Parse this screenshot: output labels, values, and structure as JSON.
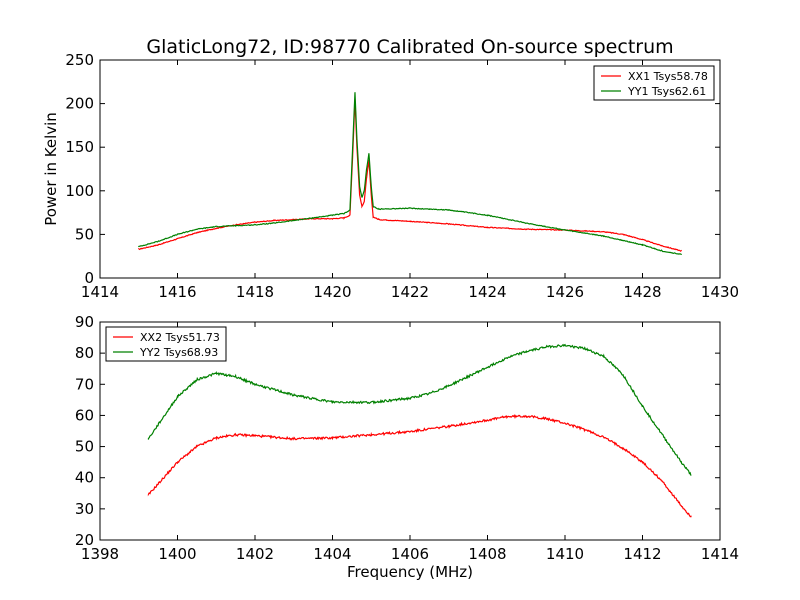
{
  "figure": {
    "title": "GlaticLong72, ID:98770 Calibrated On-source spectrum",
    "xlabel": "Frequency (MHz)",
    "ylabel": "Power in Kelvin"
  },
  "colors": {
    "red": "#ff0000",
    "green": "#008000"
  },
  "chart_data": [
    {
      "type": "line",
      "title": "GlaticLong72, ID:98770 Calibrated On-source spectrum",
      "xlabel": "",
      "ylabel": "Power in Kelvin",
      "xlim": [
        1414,
        1430
      ],
      "ylim": [
        0,
        250
      ],
      "xticks": [
        1414,
        1416,
        1418,
        1420,
        1422,
        1424,
        1426,
        1428,
        1430
      ],
      "yticks": [
        0,
        50,
        100,
        150,
        200,
        250
      ],
      "legend_position": "top-right",
      "grid": false,
      "series": [
        {
          "name": "XX1 Tsys58.78",
          "color": "#ff0000",
          "points": [
            [
              1415.0,
              33
            ],
            [
              1415.5,
              38
            ],
            [
              1416.0,
              45
            ],
            [
              1416.5,
              52
            ],
            [
              1417.0,
              57
            ],
            [
              1417.5,
              61
            ],
            [
              1418.0,
              64
            ],
            [
              1418.5,
              66
            ],
            [
              1419.0,
              67
            ],
            [
              1419.5,
              68
            ],
            [
              1420.0,
              68
            ],
            [
              1420.3,
              69
            ],
            [
              1420.45,
              72
            ],
            [
              1420.52,
              140
            ],
            [
              1420.58,
              205
            ],
            [
              1420.63,
              150
            ],
            [
              1420.7,
              95
            ],
            [
              1420.76,
              82
            ],
            [
              1420.82,
              88
            ],
            [
              1420.88,
              115
            ],
            [
              1420.94,
              135
            ],
            [
              1421.0,
              95
            ],
            [
              1421.05,
              70
            ],
            [
              1421.2,
              67
            ],
            [
              1422.0,
              65
            ],
            [
              1423.0,
              62
            ],
            [
              1424.0,
              58
            ],
            [
              1425.0,
              56
            ],
            [
              1426.0,
              55
            ],
            [
              1427.0,
              53
            ],
            [
              1427.5,
              50
            ],
            [
              1428.0,
              44
            ],
            [
              1428.5,
              37
            ],
            [
              1429.0,
              31
            ]
          ]
        },
        {
          "name": "YY1 Tsys62.61",
          "color": "#008000",
          "points": [
            [
              1415.0,
              36
            ],
            [
              1415.5,
              42
            ],
            [
              1416.0,
              50
            ],
            [
              1416.5,
              56
            ],
            [
              1417.0,
              59
            ],
            [
              1417.5,
              60
            ],
            [
              1418.0,
              61
            ],
            [
              1418.5,
              63
            ],
            [
              1419.0,
              66
            ],
            [
              1419.5,
              69
            ],
            [
              1420.0,
              72
            ],
            [
              1420.3,
              74
            ],
            [
              1420.45,
              78
            ],
            [
              1420.52,
              150
            ],
            [
              1420.58,
              213
            ],
            [
              1420.63,
              160
            ],
            [
              1420.7,
              105
            ],
            [
              1420.76,
              92
            ],
            [
              1420.82,
              100
            ],
            [
              1420.88,
              125
            ],
            [
              1420.94,
              143
            ],
            [
              1421.0,
              105
            ],
            [
              1421.05,
              82
            ],
            [
              1421.2,
              79
            ],
            [
              1422.0,
              80
            ],
            [
              1422.5,
              79
            ],
            [
              1423.0,
              78
            ],
            [
              1424.0,
              72
            ],
            [
              1425.0,
              63
            ],
            [
              1426.0,
              55
            ],
            [
              1427.0,
              48
            ],
            [
              1428.0,
              38
            ],
            [
              1428.5,
              31
            ],
            [
              1429.0,
              27
            ]
          ]
        }
      ]
    },
    {
      "type": "line",
      "title": "",
      "xlabel": "Frequency (MHz)",
      "ylabel": "",
      "xlim": [
        1398,
        1414
      ],
      "ylim": [
        20,
        90
      ],
      "xticks": [
        1398,
        1400,
        1402,
        1404,
        1406,
        1408,
        1410,
        1412,
        1414
      ],
      "yticks": [
        20,
        30,
        40,
        50,
        60,
        70,
        80,
        90
      ],
      "legend_position": "top-left",
      "grid": false,
      "series": [
        {
          "name": "XX2 Tsys51.73",
          "color": "#ff0000",
          "points": [
            [
              1399.25,
              34.5
            ],
            [
              1399.5,
              38
            ],
            [
              1400.0,
              45
            ],
            [
              1400.5,
              50
            ],
            [
              1401.0,
              52.8
            ],
            [
              1401.5,
              53.8
            ],
            [
              1402.0,
              53.5
            ],
            [
              1403.0,
              52.5
            ],
            [
              1404.0,
              52.8
            ],
            [
              1405.0,
              53.8
            ],
            [
              1406.0,
              54.8
            ],
            [
              1407.0,
              56.5
            ],
            [
              1408.0,
              58.5
            ],
            [
              1408.5,
              59.6
            ],
            [
              1409.0,
              59.8
            ],
            [
              1409.5,
              59
            ],
            [
              1410.0,
              57.5
            ],
            [
              1410.5,
              55.5
            ],
            [
              1411.0,
              53
            ],
            [
              1411.5,
              49.5
            ],
            [
              1412.0,
              45
            ],
            [
              1412.5,
              39
            ],
            [
              1413.0,
              31
            ],
            [
              1413.25,
              27.5
            ]
          ]
        },
        {
          "name": "YY2 Tsys68.93",
          "color": "#008000",
          "points": [
            [
              1399.25,
              52.5
            ],
            [
              1399.5,
              57
            ],
            [
              1400.0,
              66
            ],
            [
              1400.5,
              71.5
            ],
            [
              1401.0,
              73.5
            ],
            [
              1401.5,
              72.5
            ],
            [
              1402.0,
              70
            ],
            [
              1403.0,
              66.5
            ],
            [
              1404.0,
              64.3
            ],
            [
              1405.0,
              64.2
            ],
            [
              1406.0,
              65.5
            ],
            [
              1406.5,
              67
            ],
            [
              1407.0,
              69.5
            ],
            [
              1407.5,
              72.5
            ],
            [
              1408.0,
              75.5
            ],
            [
              1408.5,
              78.5
            ],
            [
              1409.0,
              80.5
            ],
            [
              1409.5,
              82
            ],
            [
              1410.0,
              82.5
            ],
            [
              1410.5,
              81.5
            ],
            [
              1411.0,
              79
            ],
            [
              1411.5,
              73
            ],
            [
              1412.0,
              63
            ],
            [
              1412.5,
              54
            ],
            [
              1413.0,
              45
            ],
            [
              1413.25,
              41
            ]
          ]
        }
      ]
    }
  ]
}
